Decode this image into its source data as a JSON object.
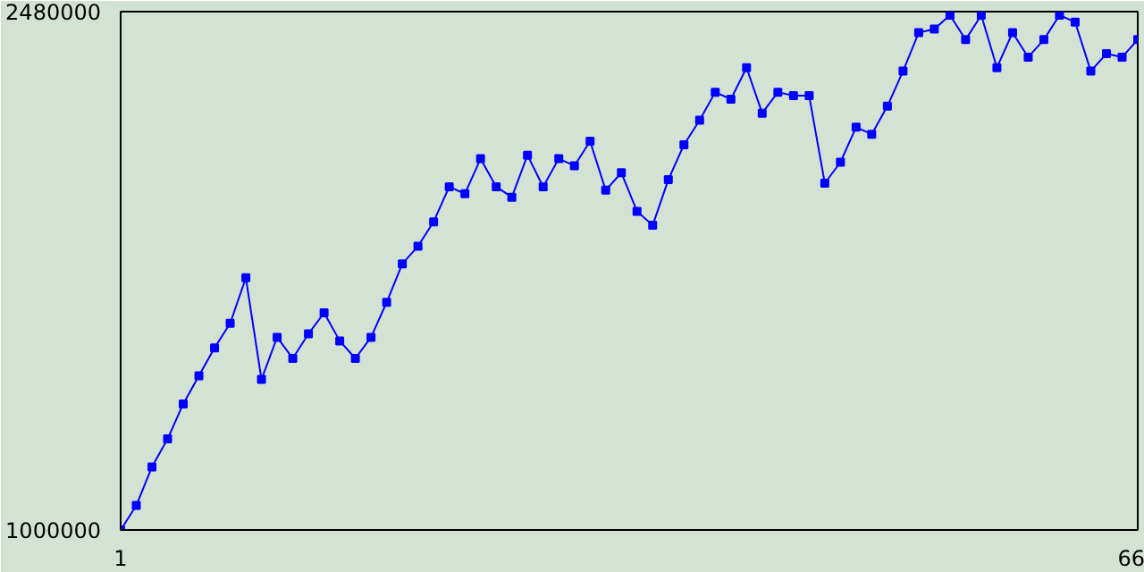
{
  "chart_data": {
    "type": "line",
    "x": [
      1,
      2,
      3,
      4,
      5,
      6,
      7,
      8,
      9,
      10,
      11,
      12,
      13,
      14,
      15,
      16,
      17,
      18,
      19,
      20,
      21,
      22,
      23,
      24,
      25,
      26,
      27,
      28,
      29,
      30,
      31,
      32,
      33,
      34,
      35,
      36,
      37,
      38,
      39,
      40,
      41,
      42,
      43,
      44,
      45,
      46,
      47,
      48,
      49,
      50,
      51,
      52,
      53,
      54,
      55,
      56,
      57,
      58,
      59,
      60,
      61,
      62,
      63,
      64,
      65,
      66
    ],
    "series": [
      {
        "color": "#0000ff",
        "values": [
          1000000,
          1070000,
          1180000,
          1260000,
          1360000,
          1440000,
          1520000,
          1590000,
          1720000,
          1430000,
          1550000,
          1490000,
          1560000,
          1620000,
          1540000,
          1490000,
          1550000,
          1650000,
          1760000,
          1810000,
          1880000,
          1980000,
          1960000,
          2060000,
          1980000,
          1950000,
          2070000,
          1980000,
          2060000,
          2040000,
          2110000,
          1970000,
          2020000,
          1910000,
          1870000,
          2000000,
          2100000,
          2170000,
          2250000,
          2230000,
          2320000,
          2190000,
          2250000,
          2240000,
          2240000,
          1990000,
          2050000,
          2150000,
          2130000,
          2210000,
          2310000,
          2420000,
          2430000,
          2470000,
          2400000,
          2470000,
          2320000,
          2420000,
          2350000,
          2400000,
          2470000,
          2450000,
          2310000,
          2360000,
          2350000,
          2400000
        ]
      }
    ],
    "xlim": [
      1,
      66
    ],
    "ylim": [
      1000000,
      2480000
    ],
    "xticks": [
      1,
      66
    ],
    "yticks": [
      {
        "value": 1000000,
        "label": "1000000"
      },
      {
        "value": 2480000,
        "label": "2480000"
      }
    ],
    "marker": "square",
    "line_style": "solid"
  }
}
